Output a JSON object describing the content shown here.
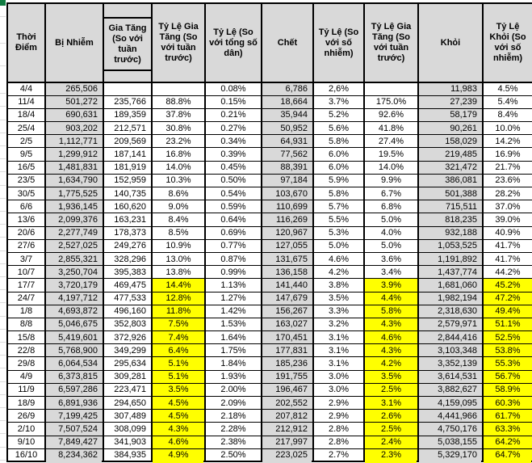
{
  "table": {
    "headers": [
      "Thời Điểm",
      "Bị Nhiễm",
      "Gia Tăng (So với tuần trước)",
      "Tỷ Lệ Gia Tăng (So với tuần trước)",
      "Tỷ Lệ (So với tổng số dân)",
      "Chết",
      "Tỷ Lệ (So với số nhiễm)",
      "Tỷ Lệ Gia Tăng (So với tuần trước)",
      "Khỏi",
      "Tỷ Lệ Khỏi (So với số nhiễm)"
    ],
    "rows": [
      [
        "4/4",
        "265,506",
        "",
        "",
        "0.08%",
        "6,786",
        "2,6%",
        "",
        "11,983",
        "4.5%"
      ],
      [
        "11/4",
        "501,272",
        "235,766",
        "88.8%",
        "0.15%",
        "18,664",
        "3.7%",
        "175.0%",
        "27,239",
        "5.4%"
      ],
      [
        "18/4",
        "690,631",
        "189,359",
        "37.8%",
        "0.21%",
        "35,944",
        "5.2%",
        "92.6%",
        "58,179",
        "8.4%"
      ],
      [
        "25/4",
        "903,202",
        "212,571",
        "30.8%",
        "0.27%",
        "50,952",
        "5.6%",
        "41.8%",
        "90,261",
        "10.0%"
      ],
      [
        "2/5",
        "1,112,771",
        "209,569",
        "23.2%",
        "0.34%",
        "64,931",
        "5.8%",
        "27.4%",
        "158,029",
        "14.2%"
      ],
      [
        "9/5",
        "1,299,912",
        "187,141",
        "16.8%",
        "0.39%",
        "77,562",
        "6.0%",
        "19.5%",
        "219,485",
        "16.9%"
      ],
      [
        "16/5",
        "1,481,831",
        "181,919",
        "14.0%",
        "0.45%",
        "88,391",
        "6.0%",
        "14.0%",
        "321,472",
        "21.7%"
      ],
      [
        "23/5",
        "1,634,790",
        "152,959",
        "10.3%",
        "0.50%",
        "97,184",
        "5.9%",
        "9.9%",
        "386,081",
        "23.6%"
      ],
      [
        "30/5",
        "1,775,525",
        "140,735",
        "8.6%",
        "0.54%",
        "103,670",
        "5.8%",
        "6.7%",
        "501,388",
        "28.2%"
      ],
      [
        "6/6",
        "1,936,145",
        "160,620",
        "9.0%",
        "0.59%",
        "110,699",
        "5.7%",
        "6.8%",
        "715,511",
        "37.0%"
      ],
      [
        "13/6",
        "2,099,376",
        "163,231",
        "8.4%",
        "0.64%",
        "116,269",
        "5.5%",
        "5.0%",
        "818,235",
        "39.0%"
      ],
      [
        "20/6",
        "2,277,749",
        "178,373",
        "8.5%",
        "0.69%",
        "120,967",
        "5.3%",
        "4.0%",
        "932,188",
        "40.9%"
      ],
      [
        "27/6",
        "2,527,025",
        "249,276",
        "10.9%",
        "0.77%",
        "127,055",
        "5.0%",
        "5.0%",
        "1,053,525",
        "41.7%"
      ],
      [
        "3/7",
        "2,855,321",
        "328,296",
        "13.0%",
        "0.87%",
        "131,675",
        "4.6%",
        "3.6%",
        "1,191,892",
        "41.7%"
      ],
      [
        "10/7",
        "3,250,704",
        "395,383",
        "13.8%",
        "0.99%",
        "136,158",
        "4.2%",
        "3.4%",
        "1,437,774",
        "44.2%"
      ],
      [
        "17/7",
        "3,720,179",
        "469,475",
        "14.4%",
        "1.13%",
        "141,440",
        "3.8%",
        "3.9%",
        "1,681,060",
        "45.2%"
      ],
      [
        "24/7",
        "4,197,712",
        "477,533",
        "12.8%",
        "1.27%",
        "147,679",
        "3.5%",
        "4.4%",
        "1,982,194",
        "47.2%"
      ],
      [
        "1/8",
        "4,693,872",
        "496,160",
        "11.8%",
        "1.42%",
        "156,267",
        "3.3%",
        "5.8%",
        "2,318,630",
        "49.4%"
      ],
      [
        "8/8",
        "5,046,675",
        "352,803",
        "7.5%",
        "1.53%",
        "163,027",
        "3.2%",
        "4.3%",
        "2,579,971",
        "51.1%"
      ],
      [
        "15/8",
        "5,419,601",
        "372,926",
        "7.4%",
        "1.64%",
        "170,451",
        "3.1%",
        "4.6%",
        "2,844,416",
        "52.5%"
      ],
      [
        "22/8",
        "5,768,900",
        "349,299",
        "6.4%",
        "1.75%",
        "177,831",
        "3.1%",
        "4.3%",
        "3,103,348",
        "53.8%"
      ],
      [
        "29/8",
        "6,064,534",
        "295,634",
        "5.1%",
        "1.84%",
        "185,236",
        "3.1%",
        "4.2%",
        "3,352,139",
        "55.3%"
      ],
      [
        "4/9",
        "6,373,815",
        "309,281",
        "5.1%",
        "1.93%",
        "191,755",
        "3.0%",
        "3.5%",
        "3,614,531",
        "56.7%"
      ],
      [
        "11/9",
        "6,597,286",
        "223,471",
        "3.5%",
        "2.00%",
        "196,467",
        "3.0%",
        "2.5%",
        "3,882,627",
        "58.9%"
      ],
      [
        "18/9",
        "6,891,936",
        "294,650",
        "4.5%",
        "2.09%",
        "202,552",
        "2.9%",
        "3.1%",
        "4,159,095",
        "60.3%"
      ],
      [
        "26/9",
        "7,199,425",
        "307,489",
        "4.5%",
        "2.18%",
        "207,812",
        "2.9%",
        "2.6%",
        "4,441,966",
        "61.7%"
      ],
      [
        "2/10",
        "7,507,524",
        "308,099",
        "4.3%",
        "2.28%",
        "212,912",
        "2.8%",
        "2.5%",
        "4,750,176",
        "63.3%"
      ],
      [
        "9/10",
        "7,849,427",
        "341,903",
        "4.6%",
        "2.38%",
        "217,997",
        "2.8%",
        "2.4%",
        "5,038,155",
        "64.2%"
      ],
      [
        "16/10",
        "8,234,362",
        "384,935",
        "4.9%",
        "2.50%",
        "223,025",
        "2.7%",
        "2.3%",
        "5,329,170",
        "64.7%"
      ]
    ],
    "grey_color": "#d9d9d9",
    "grey_columns": [
      1,
      5,
      8
    ],
    "highlight": {
      "color": "#ffff00",
      "start_row_date": "17/7",
      "start_row_index": 15,
      "columns": [
        3,
        7,
        9
      ]
    },
    "partial_next_row": {
      "grey_columns": [
        1,
        5,
        8
      ],
      "yellow_columns": [
        3,
        7,
        9
      ]
    }
  },
  "decorations": {
    "corner_marker_color": "#107c41"
  }
}
